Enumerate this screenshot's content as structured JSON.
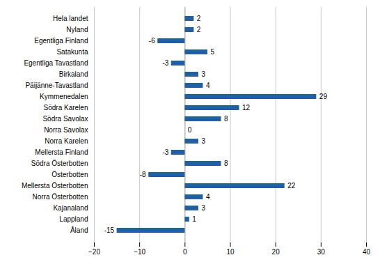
{
  "chart_data": {
    "type": "bar",
    "orientation": "horizontal",
    "categories": [
      "Hela landet",
      "Nyland",
      "Egentliga Finland",
      "Satakunta",
      "Egentliga Tavastland",
      "Birkaland",
      "Päijänne-Tavastland",
      "Kymmenedalen",
      "Södra Karelen",
      "Södra Savolax",
      "Norra Savolax",
      "Norra Karelen",
      "Mellersta Finland",
      "Södra Österbotten",
      "Österbotten",
      "Mellersta Österbotten",
      "Norra Österbotten",
      "Kajanaland",
      "Lappland",
      "Åland"
    ],
    "values": [
      2,
      2,
      -6,
      5,
      -3,
      3,
      4,
      29,
      12,
      8,
      0,
      3,
      -3,
      8,
      -8,
      22,
      4,
      3,
      1,
      -15
    ],
    "color": "#1F5FA6",
    "xlim": [
      -20,
      40
    ],
    "xticks": [
      -20,
      -10,
      0,
      10,
      20,
      30,
      40
    ],
    "grid": true,
    "data_labels": true
  }
}
